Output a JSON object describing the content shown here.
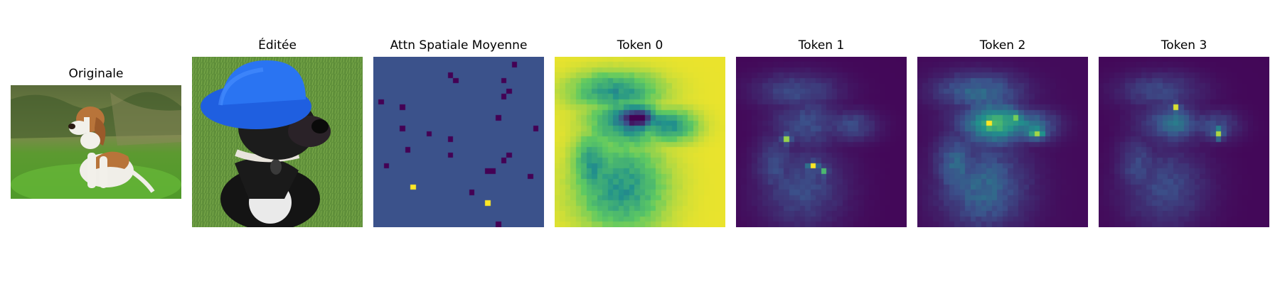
{
  "figure": {
    "panels": [
      {
        "id": "original",
        "title": "Originale",
        "kind": "photo",
        "icon": "beagle-photo"
      },
      {
        "id": "edited",
        "title": "Éditée",
        "kind": "photo",
        "icon": "dog-blue-hat-photo"
      },
      {
        "id": "attn-mean",
        "title": "Attn Spatiale Moyenne",
        "kind": "heatmap",
        "colormap": "viridis"
      },
      {
        "id": "token-0",
        "title": "Token 0",
        "kind": "heatmap",
        "colormap": "viridis"
      },
      {
        "id": "token-1",
        "title": "Token 1",
        "kind": "heatmap",
        "colormap": "viridis"
      },
      {
        "id": "token-2",
        "title": "Token 2",
        "kind": "heatmap",
        "colormap": "viridis"
      },
      {
        "id": "token-3",
        "title": "Token 3",
        "kind": "heatmap",
        "colormap": "viridis"
      }
    ]
  },
  "chart_data": {
    "type": "heatmap",
    "grid": [
      32,
      32
    ],
    "colormap": "viridis",
    "colors": {
      "viridis_dark": "#440154",
      "viridis_mid": "#31688e",
      "viridis_teal": "#21918c",
      "viridis_green": "#5ec962",
      "viridis_yellow": "#fde725"
    },
    "attention_mean_outliers": {
      "dark": [
        [
          26,
          1
        ],
        [
          14,
          3
        ],
        [
          15,
          4
        ],
        [
          24,
          4
        ],
        [
          25,
          6
        ],
        [
          24,
          7
        ],
        [
          1,
          8
        ],
        [
          5,
          9
        ],
        [
          23,
          11
        ],
        [
          30,
          13
        ],
        [
          5,
          13
        ],
        [
          10,
          14
        ],
        [
          14,
          15
        ],
        [
          6,
          17
        ],
        [
          25,
          18
        ],
        [
          14,
          18
        ],
        [
          24,
          19
        ],
        [
          2,
          20
        ],
        [
          22,
          21
        ],
        [
          21,
          21
        ],
        [
          29,
          22
        ],
        [
          18,
          25
        ],
        [
          21,
          27
        ],
        [
          23,
          31
        ]
      ],
      "bright": [
        [
          7,
          24
        ],
        [
          21,
          27
        ]
      ]
    }
  }
}
